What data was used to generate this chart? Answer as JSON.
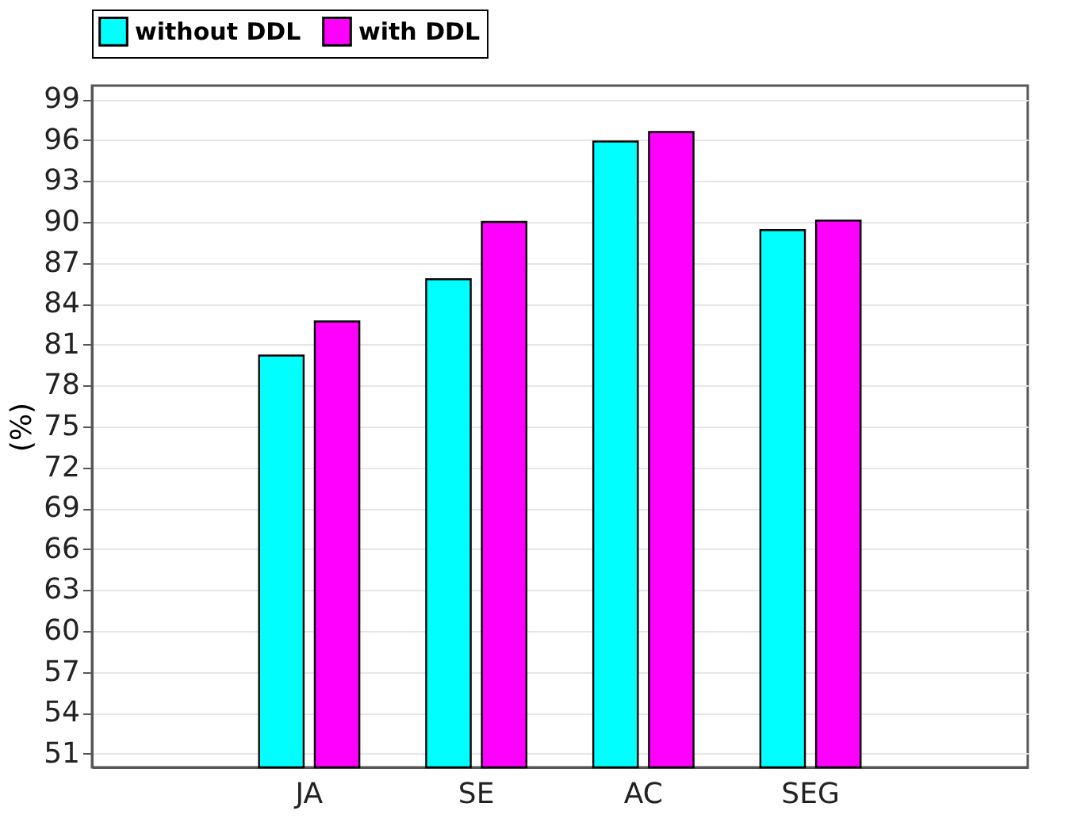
{
  "chart_data": {
    "type": "bar",
    "categories": [
      "JA",
      "SE",
      "AC",
      "SEG"
    ],
    "series": [
      {
        "name": "without DDL",
        "color": "#00ffff",
        "values": [
          80.2,
          85.8,
          95.9,
          89.4
        ]
      },
      {
        "name": "with DDL",
        "color": "#ff00ff",
        "values": [
          82.7,
          90.0,
          96.6,
          90.1
        ]
      }
    ],
    "ylabel": "(%)",
    "ylim": [
      50,
      100
    ],
    "yticks": [
      51,
      54,
      57,
      60,
      63,
      66,
      69,
      72,
      75,
      78,
      81,
      84,
      87,
      90,
      93,
      96,
      99
    ],
    "grid": "y",
    "legend": "top"
  }
}
